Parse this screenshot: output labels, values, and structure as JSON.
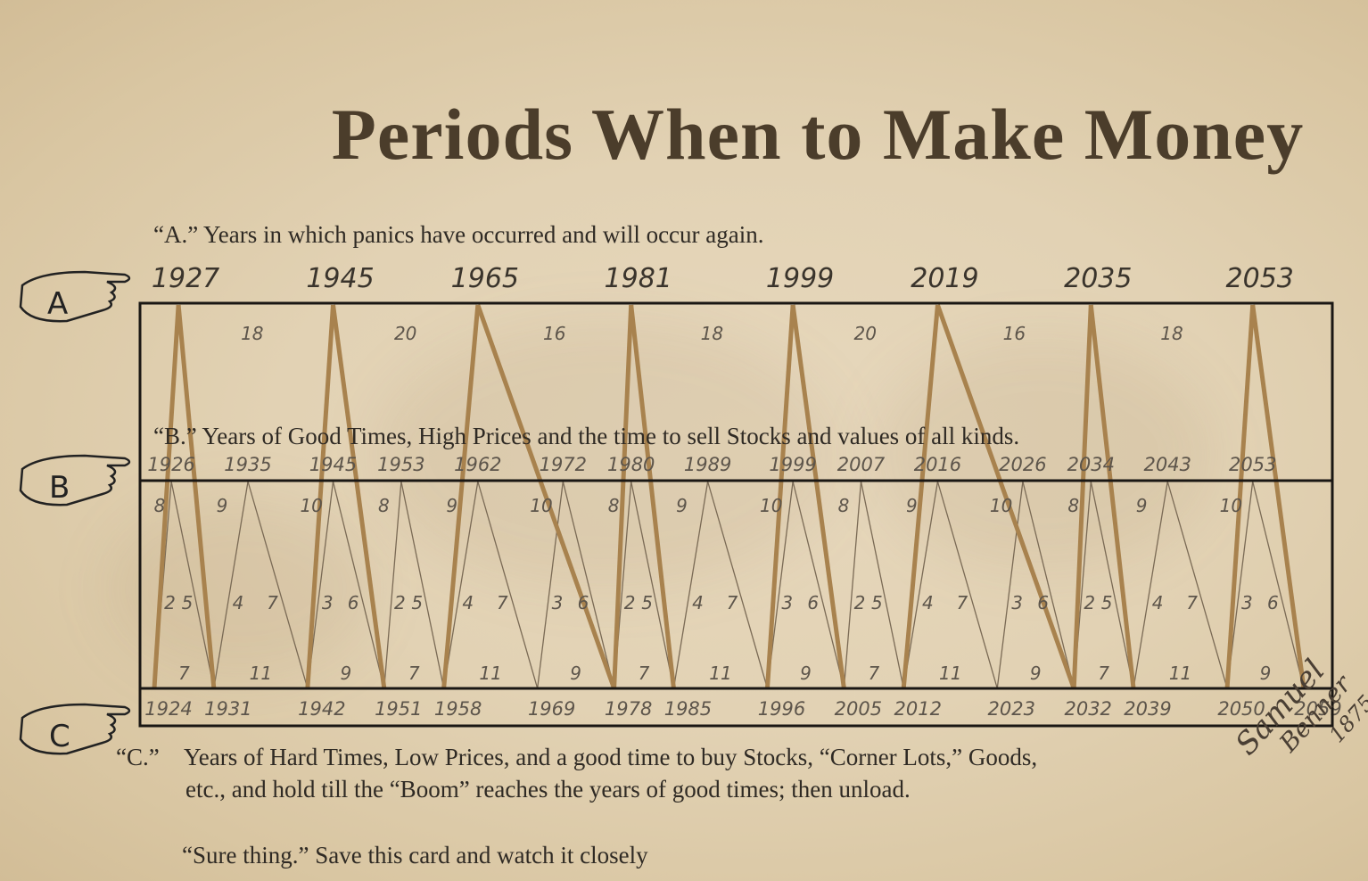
{
  "title": "Periods When to Make Money",
  "descriptions": {
    "a": "“A.” Years in which panics have occurred and will occur again.",
    "b": "“B.” Years of Good Times, High Prices and the time to sell Stocks and values of all kinds.",
    "c_label": "“C.”",
    "c_line1": "Years of Hard Times, Low Prices, and a good time to buy Stocks, “Corner Lots,” Goods,",
    "c_line2": "etc., and hold till  the “Boom” reaches the years of good times; then unload.",
    "footer": "“Sure thing.” Save this card and watch it closely"
  },
  "markers": {
    "a": "A",
    "b": "B",
    "c": "C"
  },
  "signature": {
    "line1": "Samuel",
    "line2": "Benner",
    "line3": "1875"
  },
  "colors": {
    "thick_line": "#a8824e",
    "thin_line": "#7a6a55",
    "frame": "#1a1714",
    "text": "#2f2a24",
    "number": "#5d554b"
  },
  "chart_data": {
    "type": "line",
    "panic_years": [
      "1927",
      "1945",
      "1965",
      "1981",
      "1999",
      "2019",
      "2035",
      "2053"
    ],
    "panic_intervals": [
      "18",
      "20",
      "16",
      "18",
      "20",
      "16",
      "18"
    ],
    "good_years": [
      "1926",
      "1935",
      "1945",
      "1953",
      "1962",
      "1972",
      "1980",
      "1989",
      "1999",
      "2007",
      "2016",
      "2026",
      "2034",
      "2043",
      "2053"
    ],
    "hard_years": [
      "1924",
      "1931",
      "1942",
      "1951",
      "1958",
      "1969",
      "1978",
      "1985",
      "1996",
      "2005",
      "2012",
      "2023",
      "2032",
      "2039",
      "2050",
      "2059"
    ],
    "good_intervals": [
      "8",
      "9",
      "10",
      "8",
      "9",
      "10",
      "8",
      "9",
      "10",
      "8",
      "9",
      "10",
      "8",
      "9",
      "10"
    ],
    "rise_fall_pairs": [
      [
        "2",
        "5"
      ],
      [
        "4",
        "7"
      ],
      [
        "3",
        "6"
      ],
      [
        "2",
        "5"
      ],
      [
        "4",
        "7"
      ],
      [
        "3",
        "6"
      ],
      [
        "2",
        "5"
      ],
      [
        "4",
        "7"
      ],
      [
        "3",
        "6"
      ],
      [
        "2",
        "5"
      ],
      [
        "4",
        "7"
      ],
      [
        "3",
        "6"
      ],
      [
        "2",
        "5"
      ],
      [
        "4",
        "7"
      ],
      [
        "3",
        "6"
      ]
    ],
    "hard_intervals": [
      "7",
      "11",
      "9",
      "7",
      "11",
      "9",
      "7",
      "11",
      "9",
      "7",
      "11",
      "9",
      "7",
      "11",
      "9"
    ]
  }
}
